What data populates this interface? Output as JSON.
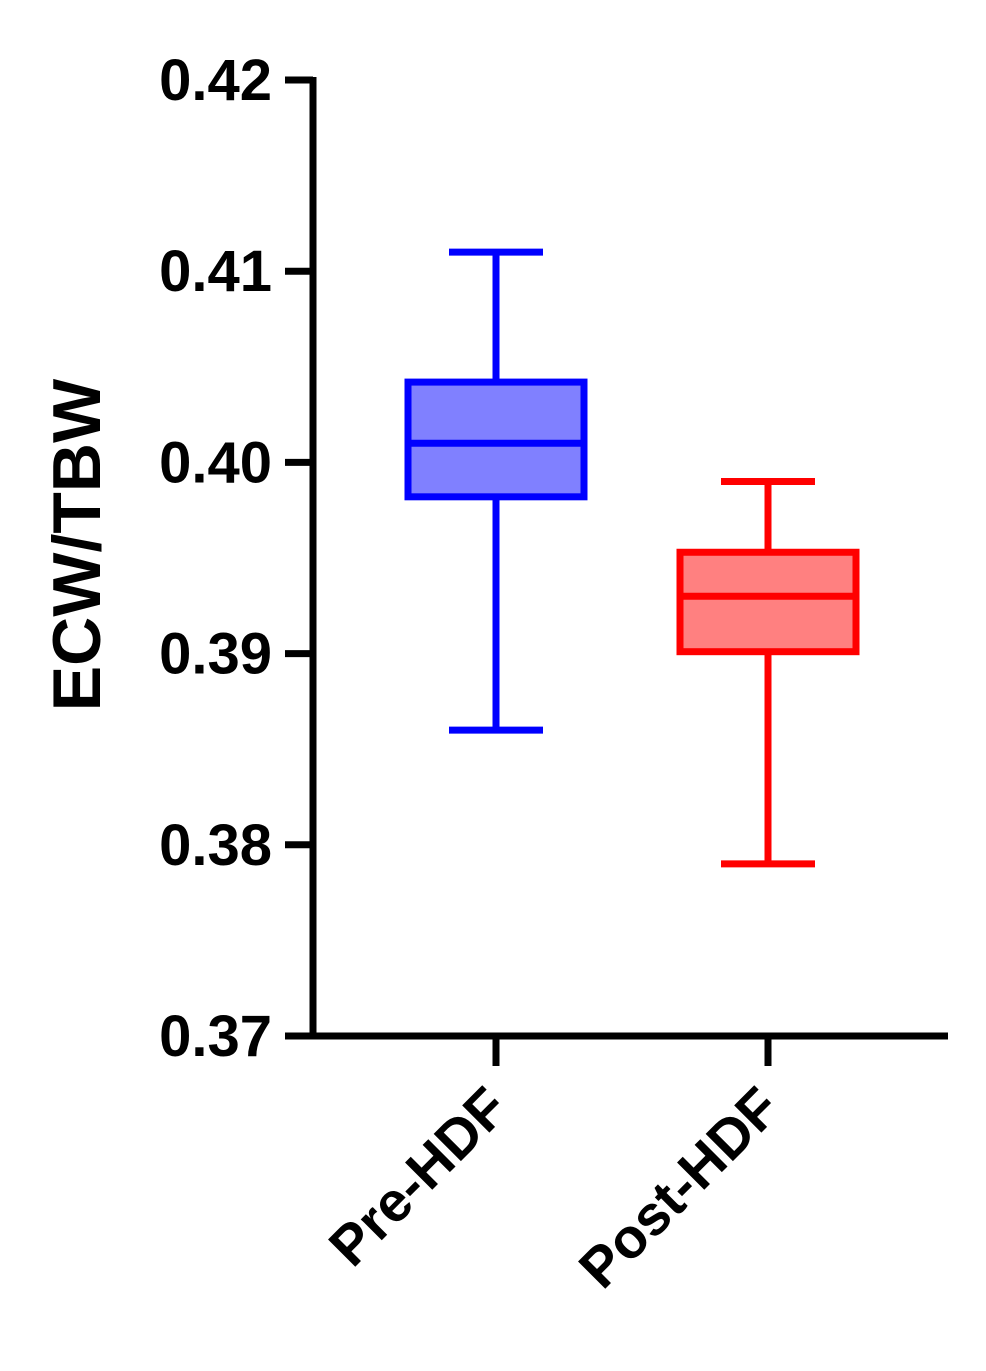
{
  "chart_data": {
    "type": "box",
    "y_label": "ECW/TBW",
    "categories": [
      "Pre-HDF",
      "Post-HDF"
    ],
    "min": [
      0.386,
      0.379
    ],
    "q1": [
      0.3982,
      0.3901
    ],
    "median": [
      0.401,
      0.393
    ],
    "q3": [
      0.4042,
      0.3953
    ],
    "max": [
      0.411,
      0.399
    ],
    "colors": [
      "#0000ff",
      "#ff0000"
    ],
    "fill_colors": [
      "#8080ff",
      "#ff8080"
    ],
    "ylim": [
      0.37,
      0.42
    ],
    "yticks": [
      0.37,
      0.38,
      0.39,
      {
        "value": 0.4,
        "label": "0.40"
      },
      0.41,
      0.42
    ]
  }
}
